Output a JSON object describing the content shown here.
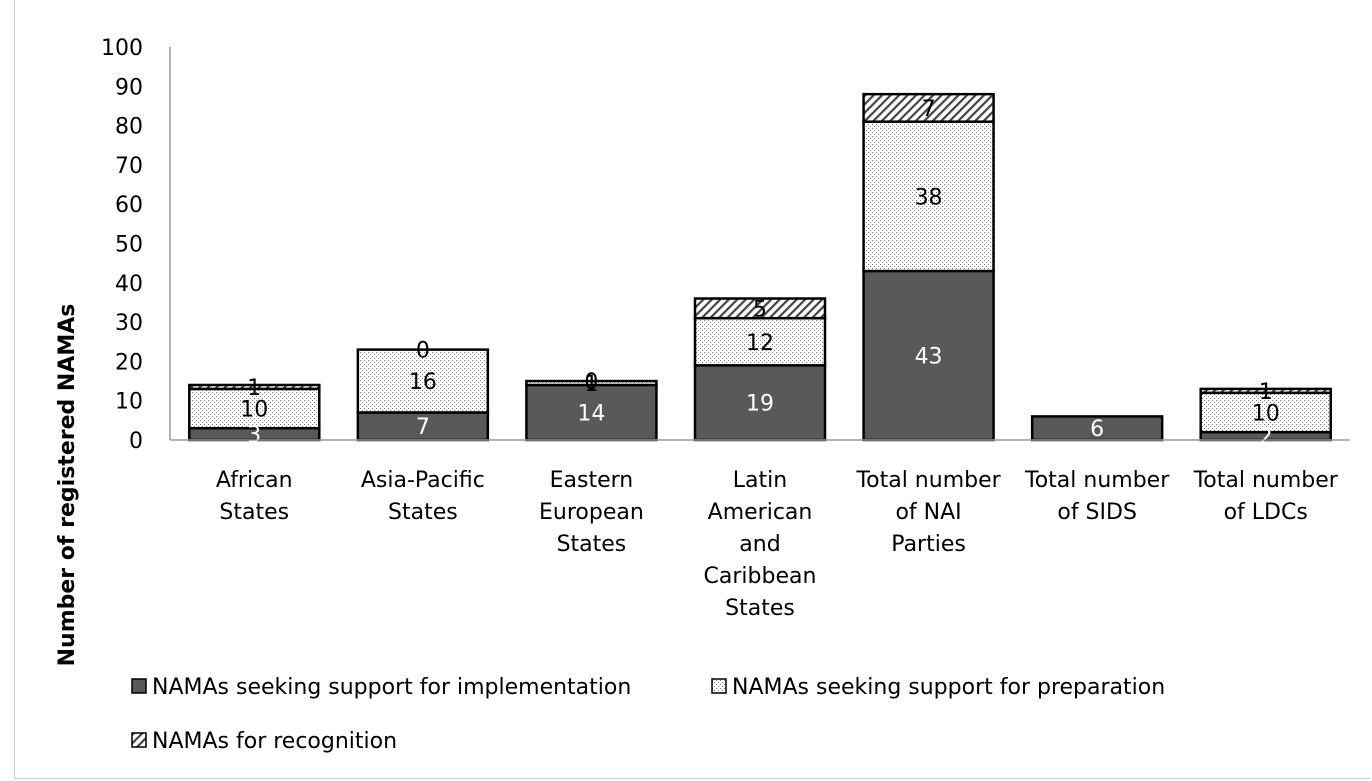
{
  "chart_data": {
    "type": "bar",
    "stacked": true,
    "title": "",
    "xlabel": "",
    "ylabel": "Number of registered NAMAs",
    "ylim": [
      0,
      100
    ],
    "yticks": [
      "0",
      "10",
      "20",
      "30",
      "40",
      "50",
      "60",
      "70",
      "80",
      "90",
      "100"
    ],
    "grid": false,
    "legend_position": "bottom",
    "categories": [
      [
        "African",
        "States"
      ],
      [
        "Asia-Pacific",
        "States"
      ],
      [
        "Eastern",
        "European",
        "States"
      ],
      [
        "Latin",
        "American",
        "and",
        "Caribbean",
        "States"
      ],
      [
        "Total number",
        "of NAI",
        "Parties"
      ],
      [
        "Total number",
        "of SIDS"
      ],
      [
        "Total number",
        "of LDCs"
      ]
    ],
    "series": [
      {
        "name": "NAMAs seeking support for implementation",
        "values": [
          3,
          7,
          14,
          19,
          43,
          6,
          2
        ],
        "color": "#595959",
        "pattern": "solid"
      },
      {
        "name": "NAMAs seeking support for preparation",
        "values": [
          10,
          16,
          1,
          12,
          38,
          0,
          10
        ],
        "color": "#f2f2f2",
        "pattern": "dots"
      },
      {
        "name": "NAMAs for recognition",
        "values": [
          1,
          0,
          0,
          5,
          7,
          0,
          1
        ],
        "color": "#ffffff",
        "pattern": "hatch"
      }
    ],
    "data_labels": [
      [
        "3",
        "10",
        "1"
      ],
      [
        "7",
        "16",
        "0"
      ],
      [
        "14",
        "1",
        "0"
      ],
      [
        "19",
        "12",
        "5"
      ],
      [
        "43",
        "38",
        "7"
      ],
      [
        "6",
        "",
        ""
      ],
      [
        "2",
        "10",
        "1"
      ]
    ]
  }
}
